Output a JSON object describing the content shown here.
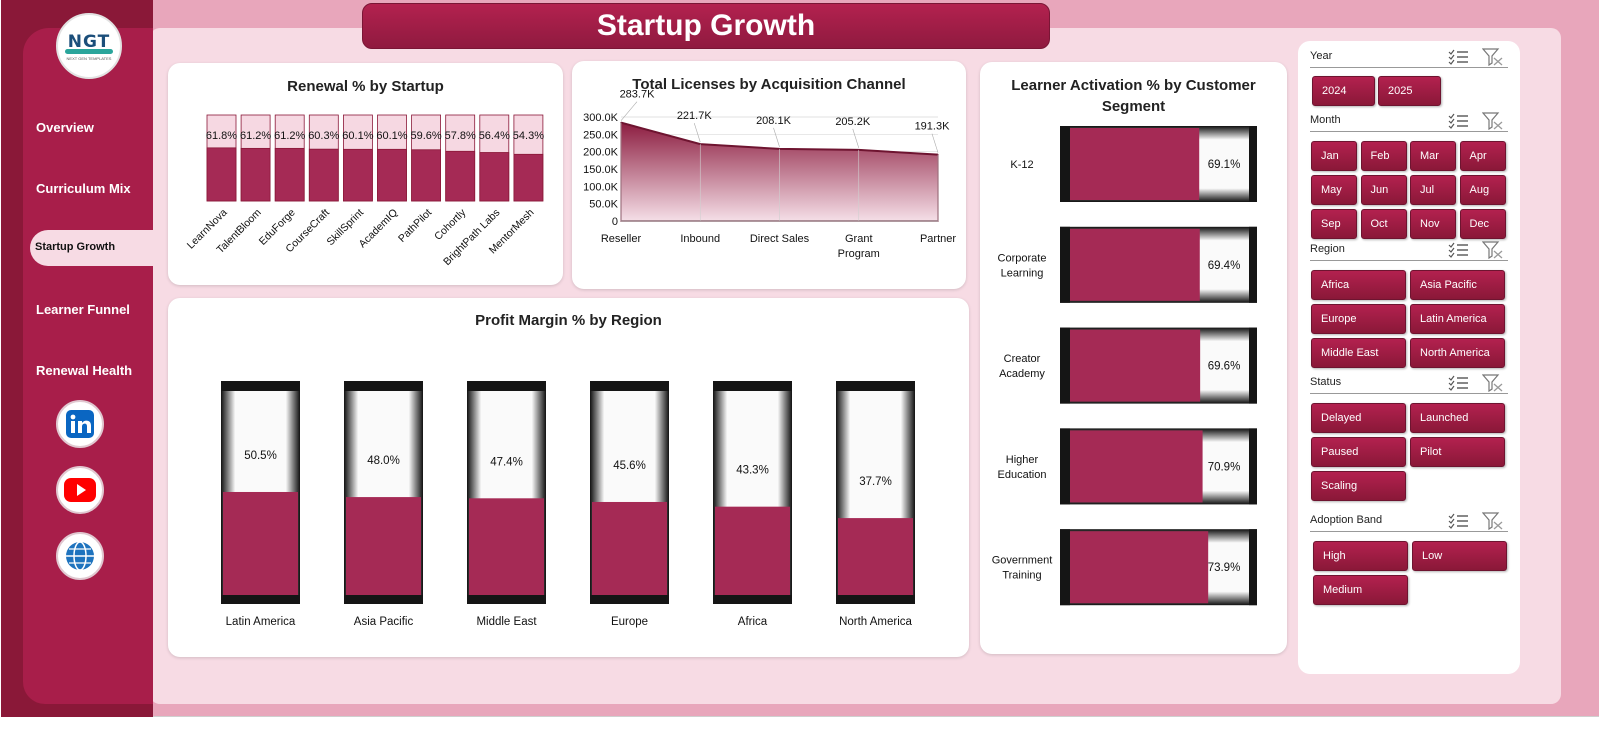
{
  "header": {
    "title": "Startup Growth"
  },
  "sidebar": {
    "logo": {
      "mark": "NGT",
      "subtitle": "NEXT GEN TEMPLATES"
    },
    "items": [
      {
        "label": "Overview"
      },
      {
        "label": "Curriculum Mix"
      },
      {
        "label": "Startup Growth",
        "active": true
      },
      {
        "label": "Learner Funnel"
      },
      {
        "label": "Renewal Health"
      }
    ],
    "social": [
      "linkedin-icon",
      "youtube-icon",
      "globe-icon"
    ]
  },
  "chart_data": [
    {
      "id": "renewal",
      "type": "bar",
      "title": "Renewal % by Startup",
      "categories": [
        "LearnNova",
        "TalentBloom",
        "EduForge",
        "CourseCraft",
        "SkillSprint",
        "AcademIQ",
        "PathPilot",
        "Cohortly",
        "BrightPath Labs",
        "MentorMesh"
      ],
      "values": [
        61.8,
        61.2,
        61.2,
        60.3,
        60.1,
        60.1,
        59.6,
        57.8,
        56.4,
        54.3
      ],
      "labels": [
        "61.8%",
        "61.2%",
        "61.2%",
        "60.3%",
        "60.1%",
        "60.1%",
        "59.6%",
        "57.8%",
        "56.4%",
        "54.3%"
      ],
      "ylim": [
        0,
        100
      ]
    },
    {
      "id": "licenses",
      "type": "area",
      "title": "Total Licenses by Acquisition Channel",
      "categories": [
        "Reseller",
        "Inbound",
        "Direct Sales",
        "Grant Program",
        "Partner"
      ],
      "values": [
        283700,
        221700,
        208100,
        205200,
        191300
      ],
      "labels": [
        "283.7K",
        "221.7K",
        "208.1K",
        "205.2K",
        "191.3K"
      ],
      "yticks": [
        "300.0K",
        "250.0K",
        "200.0K",
        "150.0K",
        "100.0K",
        "50.0K",
        "0"
      ],
      "ylim": [
        0,
        300000
      ],
      "grid": true
    },
    {
      "id": "activation",
      "type": "bar",
      "orientation": "horizontal",
      "title": "Learner Activation % by Customer Segment",
      "categories": [
        "K-12",
        "Corporate Learning",
        "Creator Academy",
        "Higher Education",
        "Government Training"
      ],
      "values": [
        69.1,
        69.4,
        69.6,
        70.9,
        73.9
      ],
      "labels": [
        "69.1%",
        "69.4%",
        "69.6%",
        "70.9%",
        "73.9%"
      ],
      "xlim": [
        0,
        100
      ]
    },
    {
      "id": "profit",
      "type": "bar",
      "title": "Profit Margin % by Region",
      "categories": [
        "Latin America",
        "Asia Pacific",
        "Middle East",
        "Europe",
        "Africa",
        "North America"
      ],
      "values": [
        50.5,
        48.0,
        47.4,
        45.6,
        43.3,
        37.7
      ],
      "labels": [
        "50.5%",
        "48.0%",
        "47.4%",
        "45.6%",
        "43.3%",
        "37.7%"
      ],
      "ylim": [
        0,
        100
      ]
    }
  ],
  "slicers": [
    {
      "title": "Year",
      "options": [
        "2024",
        "2025"
      ]
    },
    {
      "title": "Month",
      "options": [
        "Jan",
        "Feb",
        "Mar",
        "Apr",
        "May",
        "Jun",
        "Jul",
        "Aug",
        "Sep",
        "Oct",
        "Nov",
        "Dec"
      ]
    },
    {
      "title": "Region",
      "options": [
        "Africa",
        "Asia Pacific",
        "Europe",
        "Latin America",
        "Middle East",
        "North America"
      ]
    },
    {
      "title": "Status",
      "options": [
        "Delayed",
        "Launched",
        "Paused",
        "Pilot",
        "Scaling"
      ]
    },
    {
      "title": "Adoption Band",
      "options": [
        "High",
        "Low",
        "Medium"
      ]
    }
  ],
  "colors": {
    "accent": "#a81e4a",
    "dark": "#8a1838",
    "fill": "#a52a55",
    "pale": "#f6d8e2",
    "area_top": "#8c1d40",
    "area_bottom": "#f5dfe7"
  }
}
